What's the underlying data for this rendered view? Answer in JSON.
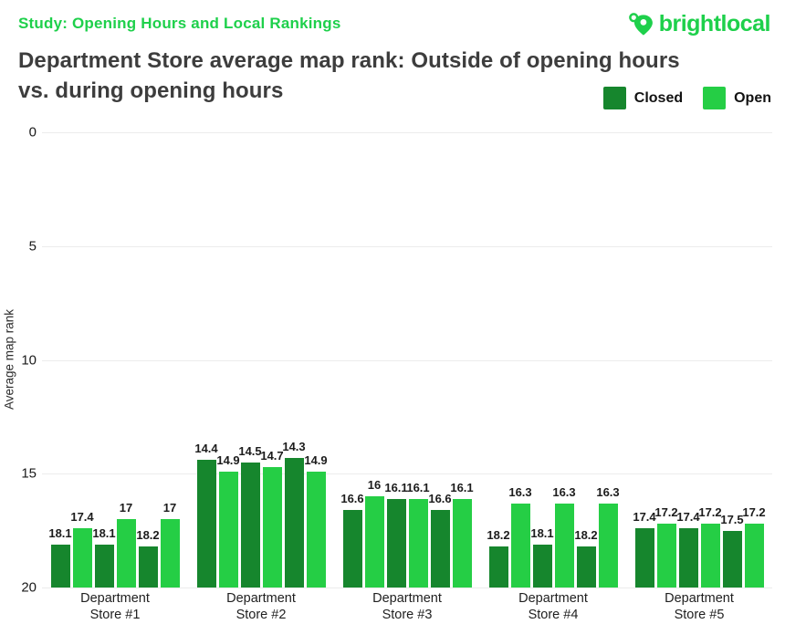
{
  "header": {
    "kicker": "Study: Opening Hours and Local Rankings",
    "logo_text": "brightlocal",
    "title_lines": [
      "Department Store average map rank: Outside of opening hours",
      "vs. during opening hours"
    ]
  },
  "colors": {
    "accent": "#1ed04b",
    "closed": "#16862d",
    "open": "#25ce45",
    "title_text": "#3d3d3d",
    "grid": "#ececec",
    "label_text": "#1c1c1c"
  },
  "legend": [
    {
      "label": "Closed",
      "series": "Closed"
    },
    {
      "label": "Open",
      "series": "Open"
    }
  ],
  "chart_data": {
    "type": "bar",
    "title": "Department Store average map rank: Outside of opening hours vs. during opening hours",
    "xlabel": "",
    "ylabel": "Average map rank",
    "y_ticks": [
      0,
      5,
      10,
      15,
      20
    ],
    "ylim": [
      0,
      20
    ],
    "y_inverted_scale": true,
    "grid": true,
    "legend_position": "top-right",
    "categories": [
      "Department Store #1",
      "Department Store #2",
      "Department Store #3",
      "Department Store #4",
      "Department Store #5"
    ],
    "series": [
      {
        "name": "Closed",
        "values": [
          [
            18.1,
            18.1,
            18.2
          ],
          [
            14.4,
            14.5,
            14.3
          ],
          [
            16.6,
            16.1,
            16.6
          ],
          [
            18.2,
            18.1,
            18.2
          ],
          [
            17.4,
            17.4,
            17.5
          ]
        ]
      },
      {
        "name": "Open",
        "values": [
          [
            17.4,
            17.0,
            17.0
          ],
          [
            14.9,
            14.7,
            14.9
          ],
          [
            16.0,
            16.1,
            16.1
          ],
          [
            16.3,
            16.3,
            16.3
          ],
          [
            17.2,
            17.2,
            17.2
          ]
        ]
      }
    ],
    "groups": [
      {
        "category_lines": [
          "Department",
          "Store #1"
        ],
        "bars": [
          {
            "series": "Closed",
            "value": 18.1,
            "label": "18.1"
          },
          {
            "series": "Open",
            "value": 17.4,
            "label": "17.4"
          },
          {
            "series": "Closed",
            "value": 18.1,
            "label": "18.1"
          },
          {
            "series": "Open",
            "value": 17.0,
            "label": "17"
          },
          {
            "series": "Closed",
            "value": 18.2,
            "label": "18.2"
          },
          {
            "series": "Open",
            "value": 17.0,
            "label": "17"
          }
        ]
      },
      {
        "category_lines": [
          "Department",
          "Store #2"
        ],
        "bars": [
          {
            "series": "Closed",
            "value": 14.4,
            "label": "14.4"
          },
          {
            "series": "Open",
            "value": 14.9,
            "label": "14.9"
          },
          {
            "series": "Closed",
            "value": 14.5,
            "label": "14.5"
          },
          {
            "series": "Open",
            "value": 14.7,
            "label": "14.7"
          },
          {
            "series": "Closed",
            "value": 14.3,
            "label": "14.3"
          },
          {
            "series": "Open",
            "value": 14.9,
            "label": "14.9"
          }
        ]
      },
      {
        "category_lines": [
          "Department",
          "Store #3"
        ],
        "bars": [
          {
            "series": "Closed",
            "value": 16.6,
            "label": "16.6"
          },
          {
            "series": "Open",
            "value": 16.0,
            "label": "16"
          },
          {
            "series": "Closed",
            "value": 16.1,
            "label": "16.1"
          },
          {
            "series": "Open",
            "value": 16.1,
            "label": "16.1"
          },
          {
            "series": "Closed",
            "value": 16.6,
            "label": "16.6"
          },
          {
            "series": "Open",
            "value": 16.1,
            "label": "16.1"
          }
        ]
      },
      {
        "category_lines": [
          "Department",
          "Store #4"
        ],
        "bars": [
          {
            "series": "Closed",
            "value": 18.2,
            "label": "18.2"
          },
          {
            "series": "Open",
            "value": 16.3,
            "label": "16.3"
          },
          {
            "series": "Closed",
            "value": 18.1,
            "label": "18.1"
          },
          {
            "series": "Open",
            "value": 16.3,
            "label": "16.3"
          },
          {
            "series": "Closed",
            "value": 18.2,
            "label": "18.2"
          },
          {
            "series": "Open",
            "value": 16.3,
            "label": "16.3"
          }
        ]
      },
      {
        "category_lines": [
          "Department",
          "Store #5"
        ],
        "bars": [
          {
            "series": "Closed",
            "value": 17.4,
            "label": "17.4"
          },
          {
            "series": "Open",
            "value": 17.2,
            "label": "17.2"
          },
          {
            "series": "Closed",
            "value": 17.4,
            "label": "17.4"
          },
          {
            "series": "Open",
            "value": 17.2,
            "label": "17.2"
          },
          {
            "series": "Closed",
            "value": 17.5,
            "label": "17.5"
          },
          {
            "series": "Open",
            "value": 17.2,
            "label": "17.2"
          }
        ]
      }
    ]
  }
}
